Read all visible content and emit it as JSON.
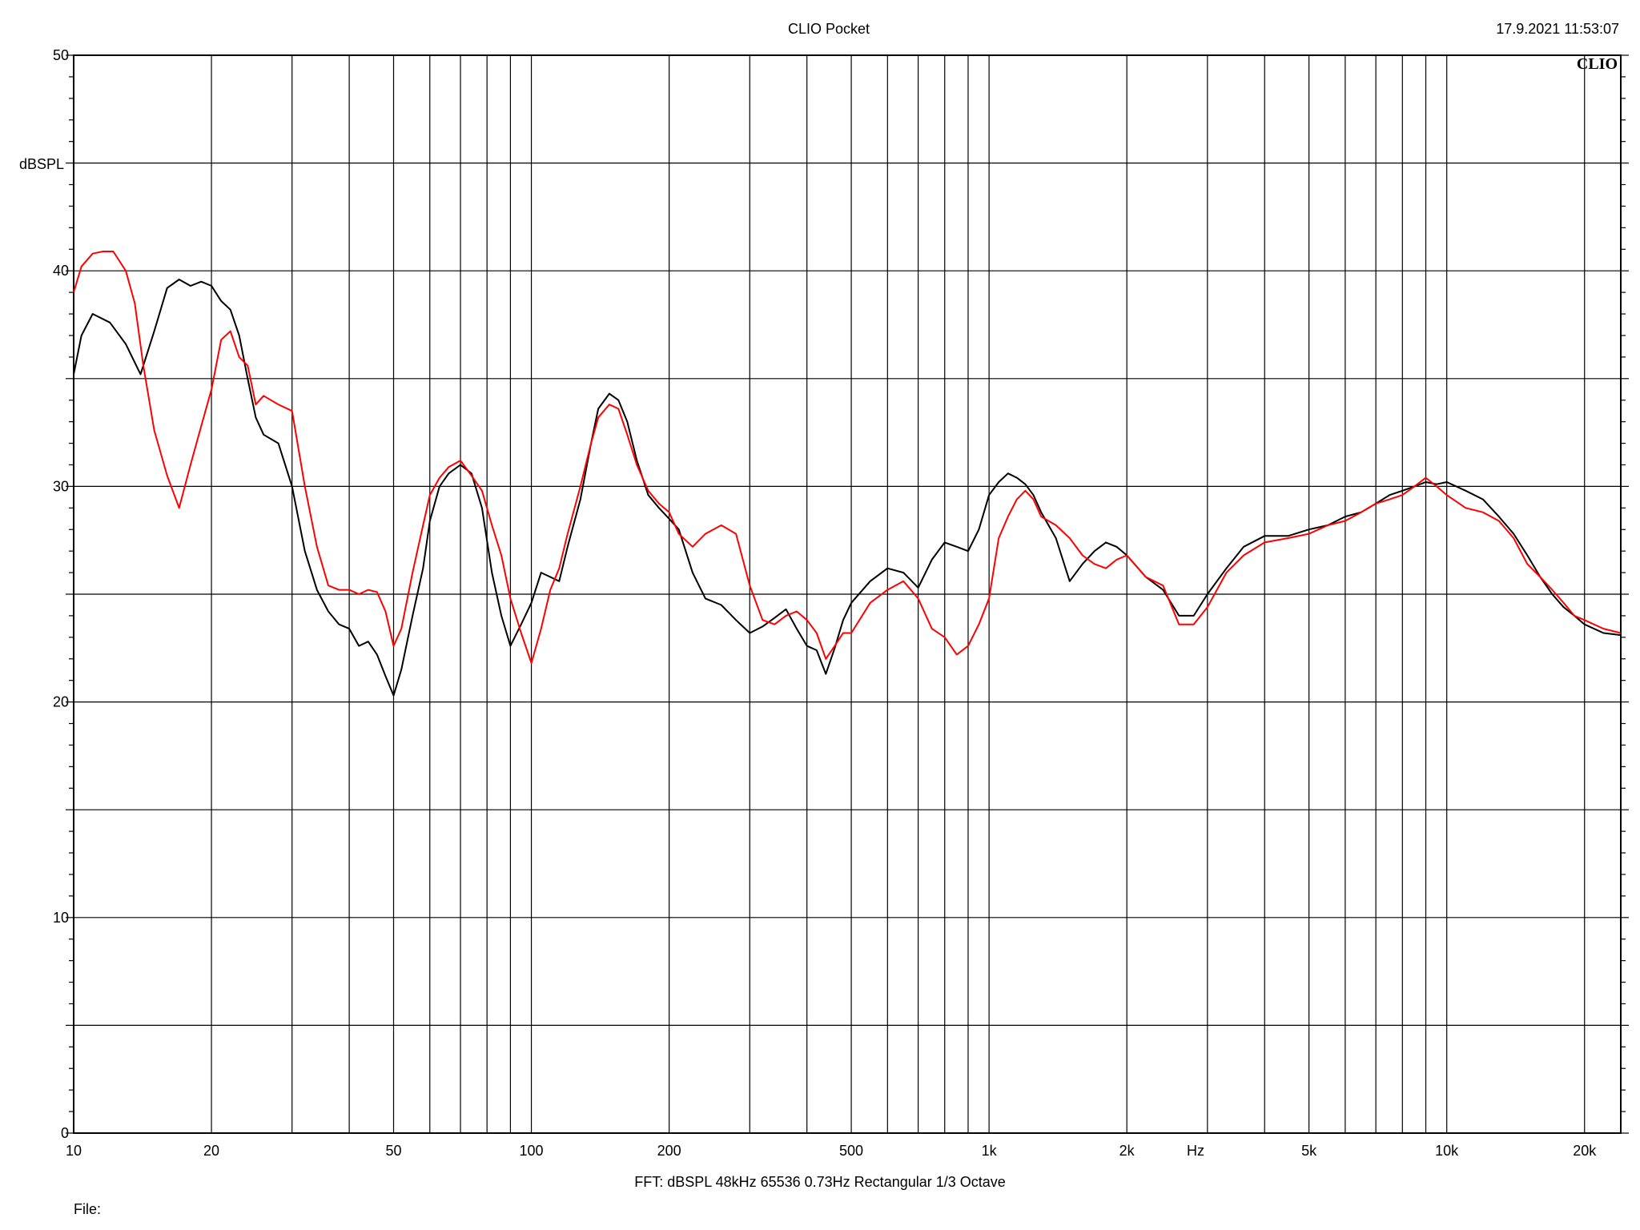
{
  "header": {
    "title": "CLIO Pocket",
    "timestamp": "17.9.2021 11:53:07",
    "logo": "CLIO"
  },
  "footer": {
    "analysis": "FFT:  dBSPL  48kHz   65536  0.73Hz  Rectangular  1/3 Octave",
    "file_label": "File:"
  },
  "chart_data": {
    "type": "line",
    "title": "CLIO Pocket",
    "xlabel": "Hz",
    "ylabel": "dBSPL",
    "xscale": "log",
    "xlim": [
      10,
      24000
    ],
    "ylim": [
      0,
      50
    ],
    "grid": true,
    "x_ticks": [
      {
        "value": 10,
        "label": "10"
      },
      {
        "value": 20,
        "label": "20"
      },
      {
        "value": 50,
        "label": "50"
      },
      {
        "value": 100,
        "label": "100"
      },
      {
        "value": 200,
        "label": "200"
      },
      {
        "value": 500,
        "label": "500"
      },
      {
        "value": 1000,
        "label": "1k"
      },
      {
        "value": 2000,
        "label": "2k"
      },
      {
        "value": 5000,
        "label": "5k"
      },
      {
        "value": 10000,
        "label": "10k"
      },
      {
        "value": 20000,
        "label": "20k"
      }
    ],
    "y_ticks": [
      {
        "value": 0,
        "label": "0"
      },
      {
        "value": 10,
        "label": "10"
      },
      {
        "value": 20,
        "label": "20"
      },
      {
        "value": 30,
        "label": "30"
      },
      {
        "value": 40,
        "label": "40"
      },
      {
        "value": 50,
        "label": "50"
      }
    ],
    "series": [
      {
        "color": "#000000",
        "points": [
          [
            10,
            35.2
          ],
          [
            10.4,
            37.0
          ],
          [
            11,
            38.0
          ],
          [
            12,
            37.6
          ],
          [
            13,
            36.6
          ],
          [
            14,
            35.2
          ],
          [
            15,
            37.2
          ],
          [
            16,
            39.2
          ],
          [
            17,
            39.6
          ],
          [
            18,
            39.3
          ],
          [
            19,
            39.5
          ],
          [
            20,
            39.3
          ],
          [
            21,
            38.6
          ],
          [
            22,
            38.2
          ],
          [
            23,
            37.0
          ],
          [
            24,
            35.0
          ],
          [
            25,
            33.2
          ],
          [
            26,
            32.4
          ],
          [
            28,
            32.0
          ],
          [
            30,
            30.0
          ],
          [
            32,
            27.0
          ],
          [
            34,
            25.2
          ],
          [
            36,
            24.2
          ],
          [
            38,
            23.6
          ],
          [
            40,
            23.4
          ],
          [
            42,
            22.6
          ],
          [
            44,
            22.8
          ],
          [
            46,
            22.2
          ],
          [
            48,
            21.2
          ],
          [
            50,
            20.3
          ],
          [
            52,
            21.5
          ],
          [
            55,
            24.0
          ],
          [
            58,
            26.2
          ],
          [
            60,
            28.4
          ],
          [
            63,
            30.0
          ],
          [
            66,
            30.6
          ],
          [
            70,
            31.0
          ],
          [
            74,
            30.6
          ],
          [
            78,
            29.0
          ],
          [
            82,
            26.0
          ],
          [
            86,
            24.0
          ],
          [
            90,
            22.6
          ],
          [
            95,
            23.6
          ],
          [
            100,
            24.6
          ],
          [
            105,
            26.0
          ],
          [
            110,
            25.8
          ],
          [
            115,
            25.6
          ],
          [
            120,
            27.2
          ],
          [
            128,
            29.4
          ],
          [
            135,
            32.0
          ],
          [
            140,
            33.6
          ],
          [
            148,
            34.3
          ],
          [
            155,
            34.0
          ],
          [
            162,
            33.0
          ],
          [
            170,
            31.2
          ],
          [
            180,
            29.6
          ],
          [
            190,
            29.0
          ],
          [
            200,
            28.5
          ],
          [
            210,
            28.0
          ],
          [
            225,
            26.0
          ],
          [
            240,
            24.8
          ],
          [
            260,
            24.5
          ],
          [
            280,
            23.8
          ],
          [
            300,
            23.2
          ],
          [
            320,
            23.5
          ],
          [
            340,
            23.9
          ],
          [
            360,
            24.3
          ],
          [
            380,
            23.4
          ],
          [
            400,
            22.6
          ],
          [
            420,
            22.4
          ],
          [
            440,
            21.3
          ],
          [
            460,
            22.5
          ],
          [
            480,
            23.8
          ],
          [
            500,
            24.6
          ],
          [
            550,
            25.6
          ],
          [
            600,
            26.2
          ],
          [
            650,
            26.0
          ],
          [
            700,
            25.3
          ],
          [
            750,
            26.6
          ],
          [
            800,
            27.4
          ],
          [
            850,
            27.2
          ],
          [
            900,
            27.0
          ],
          [
            950,
            28.0
          ],
          [
            1000,
            29.6
          ],
          [
            1050,
            30.2
          ],
          [
            1100,
            30.6
          ],
          [
            1150,
            30.4
          ],
          [
            1200,
            30.1
          ],
          [
            1250,
            29.6
          ],
          [
            1300,
            28.8
          ],
          [
            1400,
            27.6
          ],
          [
            1500,
            25.6
          ],
          [
            1600,
            26.4
          ],
          [
            1700,
            27.0
          ],
          [
            1800,
            27.4
          ],
          [
            1900,
            27.2
          ],
          [
            2000,
            26.8
          ],
          [
            2200,
            25.8
          ],
          [
            2400,
            25.2
          ],
          [
            2600,
            24.0
          ],
          [
            2800,
            24.0
          ],
          [
            3000,
            25.0
          ],
          [
            3300,
            26.2
          ],
          [
            3600,
            27.2
          ],
          [
            4000,
            27.7
          ],
          [
            4500,
            27.7
          ],
          [
            5000,
            28.0
          ],
          [
            5500,
            28.2
          ],
          [
            6000,
            28.6
          ],
          [
            6500,
            28.8
          ],
          [
            7000,
            29.2
          ],
          [
            7500,
            29.6
          ],
          [
            8000,
            29.8
          ],
          [
            8500,
            30.0
          ],
          [
            9000,
            30.2
          ],
          [
            9500,
            30.1
          ],
          [
            10000,
            30.2
          ],
          [
            11000,
            29.8
          ],
          [
            12000,
            29.4
          ],
          [
            13000,
            28.6
          ],
          [
            14000,
            27.8
          ],
          [
            15000,
            26.8
          ],
          [
            16000,
            25.8
          ],
          [
            17000,
            25.0
          ],
          [
            18000,
            24.4
          ],
          [
            19000,
            24.0
          ],
          [
            20000,
            23.6
          ],
          [
            22000,
            23.2
          ],
          [
            24000,
            23.1
          ]
        ]
      },
      {
        "color": "#ff0000",
        "points": [
          [
            10,
            39.0
          ],
          [
            10.4,
            40.2
          ],
          [
            11,
            40.8
          ],
          [
            11.6,
            40.9
          ],
          [
            12.2,
            40.9
          ],
          [
            13,
            40.0
          ],
          [
            13.6,
            38.5
          ],
          [
            14.2,
            35.6
          ],
          [
            15,
            32.6
          ],
          [
            16,
            30.5
          ],
          [
            17,
            29.0
          ],
          [
            18,
            31.0
          ],
          [
            19,
            32.8
          ],
          [
            20,
            34.5
          ],
          [
            21,
            36.8
          ],
          [
            22,
            37.2
          ],
          [
            23,
            36.0
          ],
          [
            24,
            35.6
          ],
          [
            25,
            33.8
          ],
          [
            26,
            34.2
          ],
          [
            28,
            33.8
          ],
          [
            30,
            33.5
          ],
          [
            32,
            30.0
          ],
          [
            34,
            27.2
          ],
          [
            36,
            25.4
          ],
          [
            38,
            25.2
          ],
          [
            40,
            25.2
          ],
          [
            42,
            25.0
          ],
          [
            44,
            25.2
          ],
          [
            46,
            25.1
          ],
          [
            48,
            24.2
          ],
          [
            50,
            22.6
          ],
          [
            52,
            23.4
          ],
          [
            55,
            26.0
          ],
          [
            58,
            28.2
          ],
          [
            60,
            29.6
          ],
          [
            63,
            30.4
          ],
          [
            66,
            30.9
          ],
          [
            70,
            31.2
          ],
          [
            74,
            30.5
          ],
          [
            78,
            29.8
          ],
          [
            82,
            28.2
          ],
          [
            86,
            26.8
          ],
          [
            90,
            24.8
          ],
          [
            95,
            23.2
          ],
          [
            100,
            21.8
          ],
          [
            105,
            23.4
          ],
          [
            110,
            25.2
          ],
          [
            115,
            26.2
          ],
          [
            120,
            27.8
          ],
          [
            128,
            30.0
          ],
          [
            135,
            32.0
          ],
          [
            140,
            33.2
          ],
          [
            148,
            33.8
          ],
          [
            155,
            33.6
          ],
          [
            162,
            32.4
          ],
          [
            170,
            31.0
          ],
          [
            180,
            29.8
          ],
          [
            190,
            29.2
          ],
          [
            200,
            28.8
          ],
          [
            210,
            27.8
          ],
          [
            225,
            27.2
          ],
          [
            240,
            27.8
          ],
          [
            260,
            28.2
          ],
          [
            280,
            27.8
          ],
          [
            300,
            25.4
          ],
          [
            320,
            23.8
          ],
          [
            340,
            23.6
          ],
          [
            360,
            24.0
          ],
          [
            380,
            24.2
          ],
          [
            400,
            23.8
          ],
          [
            420,
            23.2
          ],
          [
            440,
            22.0
          ],
          [
            460,
            22.6
          ],
          [
            480,
            23.2
          ],
          [
            500,
            23.2
          ],
          [
            550,
            24.6
          ],
          [
            600,
            25.2
          ],
          [
            650,
            25.6
          ],
          [
            700,
            24.8
          ],
          [
            750,
            23.4
          ],
          [
            800,
            23.0
          ],
          [
            850,
            22.2
          ],
          [
            900,
            22.6
          ],
          [
            950,
            23.6
          ],
          [
            1000,
            24.8
          ],
          [
            1050,
            27.6
          ],
          [
            1100,
            28.6
          ],
          [
            1150,
            29.4
          ],
          [
            1200,
            29.8
          ],
          [
            1250,
            29.4
          ],
          [
            1300,
            28.6
          ],
          [
            1400,
            28.2
          ],
          [
            1500,
            27.6
          ],
          [
            1600,
            26.8
          ],
          [
            1700,
            26.4
          ],
          [
            1800,
            26.2
          ],
          [
            1900,
            26.6
          ],
          [
            2000,
            26.8
          ],
          [
            2200,
            25.8
          ],
          [
            2400,
            25.4
          ],
          [
            2600,
            23.6
          ],
          [
            2800,
            23.6
          ],
          [
            3000,
            24.4
          ],
          [
            3300,
            26.0
          ],
          [
            3600,
            26.8
          ],
          [
            4000,
            27.4
          ],
          [
            4500,
            27.6
          ],
          [
            5000,
            27.8
          ],
          [
            5500,
            28.2
          ],
          [
            6000,
            28.4
          ],
          [
            6500,
            28.8
          ],
          [
            7000,
            29.2
          ],
          [
            7500,
            29.4
          ],
          [
            8000,
            29.6
          ],
          [
            8500,
            30.0
          ],
          [
            9000,
            30.4
          ],
          [
            9500,
            30.0
          ],
          [
            10000,
            29.6
          ],
          [
            11000,
            29.0
          ],
          [
            12000,
            28.8
          ],
          [
            13000,
            28.4
          ],
          [
            14000,
            27.6
          ],
          [
            15000,
            26.4
          ],
          [
            16000,
            25.8
          ],
          [
            17000,
            25.2
          ],
          [
            18000,
            24.6
          ],
          [
            19000,
            24.0
          ],
          [
            20000,
            23.8
          ],
          [
            22000,
            23.4
          ],
          [
            24000,
            23.2
          ]
        ]
      }
    ]
  }
}
